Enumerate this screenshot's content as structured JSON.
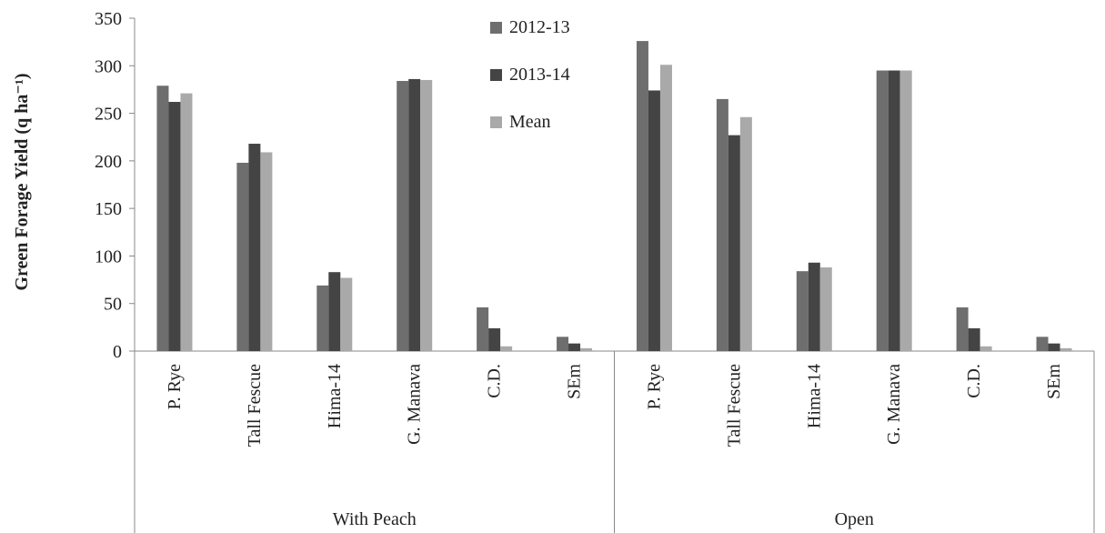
{
  "chart_data": {
    "type": "bar",
    "ylabel": "Green Forage Yield (q ha⁻¹)",
    "ylim": [
      0,
      350
    ],
    "yticks": [
      "0",
      "50",
      "100",
      "150",
      "200",
      "250",
      "300",
      "350"
    ],
    "grid": false,
    "legend_position": "top-center",
    "groups": [
      {
        "label": "With Peach",
        "categories": [
          "P. Rye",
          "Tall Fescue",
          "Hima-14",
          "G. Manava",
          "C.D.",
          "SEm"
        ]
      },
      {
        "label": "Open",
        "categories": [
          "P. Rye",
          "Tall Fescue",
          "Hima-14",
          "G. Manava",
          "C.D.",
          "SEm"
        ]
      }
    ],
    "series": [
      {
        "name": "2012-13",
        "color": "#6e6e6e",
        "values": [
          279,
          198,
          69,
          284,
          46,
          15,
          326,
          265,
          84,
          295,
          46,
          15
        ]
      },
      {
        "name": "2013-14",
        "color": "#444444",
        "values": [
          262,
          218,
          83,
          286,
          24,
          8,
          274,
          227,
          93,
          295,
          24,
          8
        ]
      },
      {
        "name": "Mean",
        "color": "#a9a9a9",
        "values": [
          271,
          209,
          77,
          285,
          5,
          3,
          301,
          246,
          88,
          295,
          5,
          3
        ]
      }
    ]
  }
}
